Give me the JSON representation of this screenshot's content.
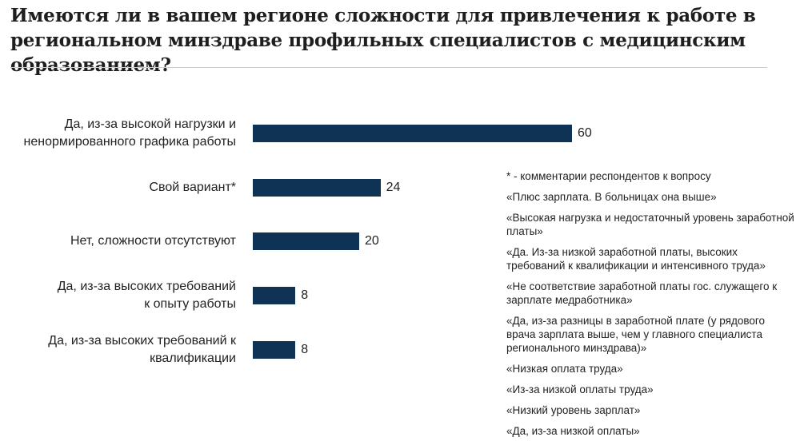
{
  "title": "Имеются ли в вашем регионе сложности для привлечения к работе в региональном минздраве профильных специалистов с медицинским образованием?",
  "colors": {
    "bar": "#0f3354",
    "text": "#222222",
    "divider": "#c9ccd2"
  },
  "chart_data": {
    "type": "bar",
    "orientation": "horizontal",
    "title": "Имеются ли в вашем регионе сложности для привлечения к работе в региональном минздраве профильных специалистов с медицинским образованием?",
    "categories": [
      [
        "Да, из-за высокой нагрузки и",
        "ненормированного графика работы"
      ],
      [
        "Свой вариант*"
      ],
      [
        "Нет, сложности отсутствуют"
      ],
      [
        "Да, из-за высоких требований",
        "к опыту работы"
      ],
      [
        "Да, из-за высоких требований к",
        "квалификации"
      ]
    ],
    "values": [
      60,
      24,
      20,
      8,
      8
    ],
    "xlim": [
      0,
      60
    ],
    "grid": false,
    "legend": "none"
  },
  "notes": {
    "header": "* - комментарии респондентов к вопросу",
    "items": [
      "«Плюс зарплата. В больницах она выше»",
      "«Высокая нагрузка и недостаточный уровень заработной платы»",
      "«Да. Из-за низкой заработной платы, высоких требований к квалификации и интенсивного труда»",
      "«Не соответствие заработной платы гос. служащего к зарплате медработника»",
      "«Да, из-за разницы в заработной плате (у рядового врача зарплата выше, чем у главного специалиста регионального минздрава)»",
      "«Низкая оплата труда»",
      "«Из-за низкой оплаты труда»",
      "«Низкий уровень зарплат»",
      "«Да, из-за низкой оплаты»"
    ]
  }
}
